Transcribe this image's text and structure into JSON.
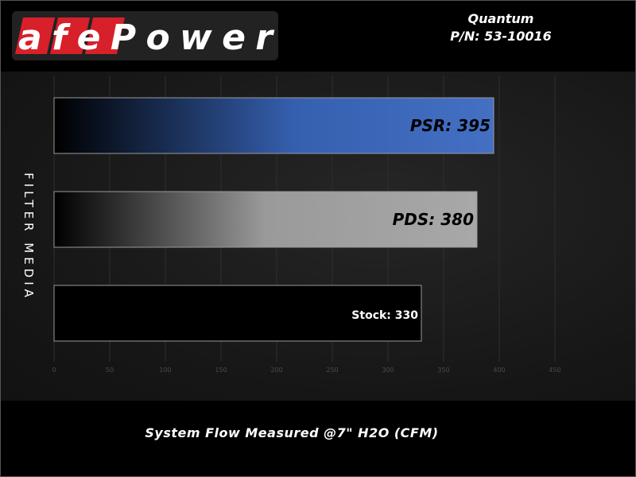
{
  "header": {
    "brand": "aFePower",
    "product": "Quantum",
    "part_number": "P/N: 53-10016"
  },
  "colors": {
    "brand_red": "#d8202a",
    "psr_blue": "#3f6cc0",
    "pds_gray": "#a5a5a5",
    "stock_black": "#000000"
  },
  "chart_data": {
    "type": "bar",
    "orientation": "horizontal",
    "categories": [
      "PSR",
      "PDS",
      "Stock"
    ],
    "values": [
      395,
      380,
      330
    ],
    "data_labels": [
      "PSR: 395",
      "PDS: 380",
      "Stock: 330"
    ],
    "xlabel": "System Flow Measured @7\" H2O (CFM)",
    "ylabel": "FILTER MEDIA",
    "xlim": [
      0,
      450
    ],
    "xticks": [
      0,
      50,
      100,
      150,
      200,
      250,
      300,
      350,
      400,
      450
    ],
    "grid": true
  }
}
